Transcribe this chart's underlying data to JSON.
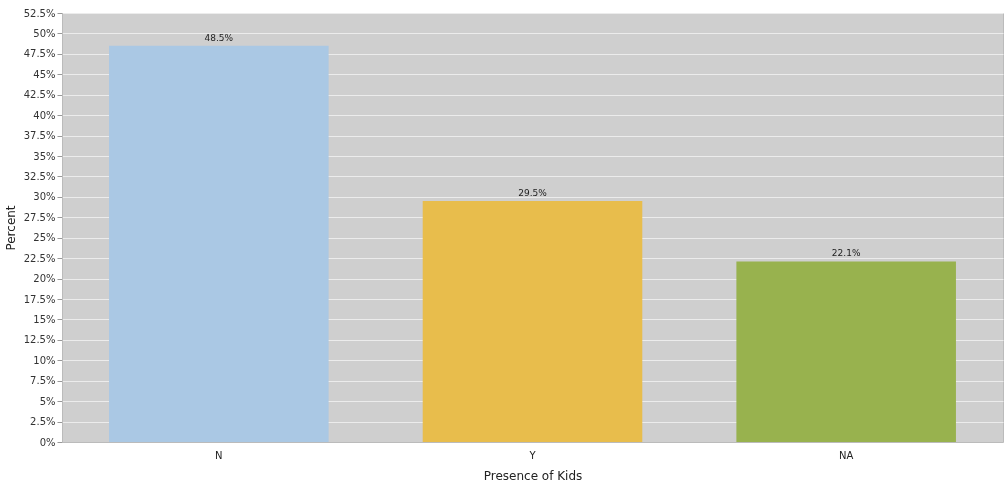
{
  "chart_data": {
    "type": "bar",
    "categories": [
      "N",
      "Y",
      "NA"
    ],
    "values": [
      48.5,
      29.5,
      22.1
    ],
    "colors": [
      "#aac8e4",
      "#e8bd4c",
      "#98b24e"
    ],
    "value_labels": [
      "48.5%",
      "29.5%",
      "22.1%"
    ],
    "xlabel": "Presence of Kids",
    "ylabel": "Percent",
    "ylim": [
      0,
      52.5
    ],
    "yticks": [
      {
        "value": 0,
        "label": "0%"
      },
      {
        "value": 2.5,
        "label": "2.5%"
      },
      {
        "value": 5,
        "label": "5%"
      },
      {
        "value": 7.5,
        "label": "7.5%"
      },
      {
        "value": 10,
        "label": "10%"
      },
      {
        "value": 12.5,
        "label": "12.5%"
      },
      {
        "value": 15,
        "label": "15%"
      },
      {
        "value": 17.5,
        "label": "17.5%"
      },
      {
        "value": 20,
        "label": "20%"
      },
      {
        "value": 22.5,
        "label": "22.5%"
      },
      {
        "value": 25,
        "label": "25%"
      },
      {
        "value": 27.5,
        "label": "27.5%"
      },
      {
        "value": 30,
        "label": "30%"
      },
      {
        "value": 32.5,
        "label": "32.5%"
      },
      {
        "value": 35,
        "label": "35%"
      },
      {
        "value": 37.5,
        "label": "37.5%"
      },
      {
        "value": 40,
        "label": "40%"
      },
      {
        "value": 42.5,
        "label": "42.5%"
      },
      {
        "value": 45,
        "label": "45%"
      },
      {
        "value": 47.5,
        "label": "47.5%"
      },
      {
        "value": 50,
        "label": "50%"
      },
      {
        "value": 52.5,
        "label": "52.5%"
      }
    ],
    "grid": "y"
  }
}
